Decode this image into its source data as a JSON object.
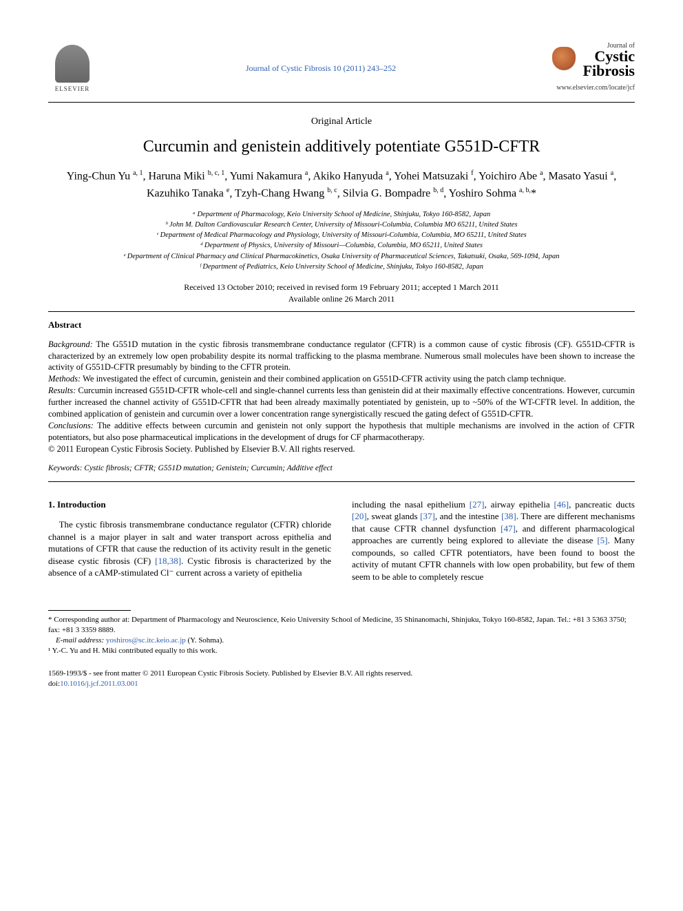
{
  "header": {
    "publisher": "ELSEVIER",
    "journal_ref_text": "Journal of Cystic Fibrosis 10 (2011) 243–252",
    "journal_logo_top": "Journal of",
    "journal_logo_line1": "Cystic",
    "journal_logo_line2": "Fibrosis",
    "journal_www": "www.elsevier.com/locate/jcf"
  },
  "article": {
    "type": "Original Article",
    "title": "Curcumin and genistein additively potentiate G551D-CFTR",
    "authors_html": "Ying-Chun Yu <sup>a, 1</sup>, Haruna Miki <sup>b, c, 1</sup>, Yumi Nakamura <sup>a</sup>, Akiko Hanyuda <sup>a</sup>, Yohei Matsuzaki <sup>f</sup>, Yoichiro Abe <sup>a</sup>, Masato Yasui <sup>a</sup>, Kazuhiko Tanaka <sup>e</sup>, Tzyh-Chang Hwang <sup>b, c</sup>, Silvia G. Bompadre <sup>b, d</sup>, Yoshiro Sohma <sup>a, b,</sup>*",
    "affiliations": [
      "ᵃ Department of Pharmacology, Keio University School of Medicine, Shinjuku, Tokyo 160-8582, Japan",
      "ᵇ John M. Dalton Cardiovascular Research Center, University of Missouri-Columbia, Columbia MO 65211, United States",
      "ᶜ Department of Medical Pharmacology and Physiology, University of Missouri-Columbia, Columbia, MO 65211, United States",
      "ᵈ Department of Physics, University of Missouri—Columbia, Columbia, MO 65211, United States",
      "ᵉ Department of Clinical Pharmacy and Clinical Pharmacokinetics, Osaka University of Pharmaceutical Sciences, Takatsuki, Osaka, 569-1094, Japan",
      "ᶠ Department of Pediatrics, Keio University School of Medicine, Shinjuku, Tokyo 160-8582, Japan"
    ],
    "dates_line1": "Received 13 October 2010; received in revised form 19 February 2011; accepted 1 March 2011",
    "dates_line2": "Available online 26 March 2011"
  },
  "abstract": {
    "label": "Abstract",
    "background_label": "Background:",
    "background": " The G551D mutation in the cystic fibrosis transmembrane conductance regulator (CFTR) is a common cause of cystic fibrosis (CF). G551D-CFTR is characterized by an extremely low open probability despite its normal trafficking to the plasma membrane. Numerous small molecules have been shown to increase the activity of G551D-CFTR presumably by binding to the CFTR protein.",
    "methods_label": "Methods:",
    "methods": " We investigated the effect of curcumin, genistein and their combined application on G551D-CFTR activity using the patch clamp technique.",
    "results_label": "Results:",
    "results": " Curcumin increased G551D-CFTR whole-cell and single-channel currents less than genistein did at their maximally effective concentrations. However, curcumin further increased the channel activity of G551D-CFTR that had been already maximally potentiated by genistein, up to ~50% of the WT-CFTR level. In addition, the combined application of genistein and curcumin over a lower concentration range synergistically rescued the gating defect of G551D-CFTR.",
    "conclusions_label": "Conclusions:",
    "conclusions": " The additive effects between curcumin and genistein not only support the hypothesis that multiple mechanisms are involved in the action of CFTR potentiators, but also pose pharmaceutical implications in the development of drugs for CF pharmacotherapy.",
    "copyright": "© 2011 European Cystic Fibrosis Society. Published by Elsevier B.V. All rights reserved."
  },
  "keywords": {
    "label": "Keywords:",
    "text": " Cystic fibrosis; CFTR; G551D mutation; Genistein; Curcumin; Additive effect"
  },
  "body": {
    "section_heading": "1. Introduction",
    "col1": "The cystic fibrosis transmembrane conductance regulator (CFTR) chloride channel is a major player in salt and water transport across epithelia and mutations of CFTR that cause the reduction of its activity result in the genetic disease cystic fibrosis (CF) ",
    "col1_cite1": "[18,38]",
    "col1_tail": ". Cystic fibrosis is characterized by the absence of a cAMP-stimulated Cl⁻ current across a variety of epithelia",
    "col2_a": "including the nasal epithelium ",
    "col2_cite1": "[27]",
    "col2_b": ", airway epithelia ",
    "col2_cite2": "[46]",
    "col2_c": ", pancreatic ducts ",
    "col2_cite3": "[20]",
    "col2_d": ", sweat glands ",
    "col2_cite4": "[37]",
    "col2_e": ", and the intestine ",
    "col2_cite5": "[38]",
    "col2_f": ". There are different mechanisms that cause CFTR channel dysfunction ",
    "col2_cite6": "[47]",
    "col2_g": ", and different pharmacological approaches are currently being explored to alleviate the disease ",
    "col2_cite7": "[5]",
    "col2_h": ". Many compounds, so called CFTR potentiators, have been found to boost the activity of mutant CFTR channels with low open probability, but few of them seem to be able to completely rescue"
  },
  "footnotes": {
    "corr": "* Corresponding author at: Department of Pharmacology and Neuroscience, Keio University School of Medicine, 35 Shinanomachi, Shinjuku, Tokyo 160-8582, Japan. Tel.: +81 3 5363 3750; fax: +81 3 3359 8889.",
    "email_label": "E-mail address:",
    "email": "yoshiros@sc.itc.keio.ac.jp",
    "email_tail": " (Y. Sohma).",
    "equal": "¹ Y.-C. Yu and H. Miki contributed equally to this work."
  },
  "bottom": {
    "issn": "1569-1993/$ - see front matter © 2011 European Cystic Fibrosis Society. Published by Elsevier B.V. All rights reserved.",
    "doi_label": "doi:",
    "doi": "10.1016/j.jcf.2011.03.001"
  },
  "colors": {
    "link": "#2a5db0",
    "text": "#000000",
    "background": "#ffffff"
  }
}
